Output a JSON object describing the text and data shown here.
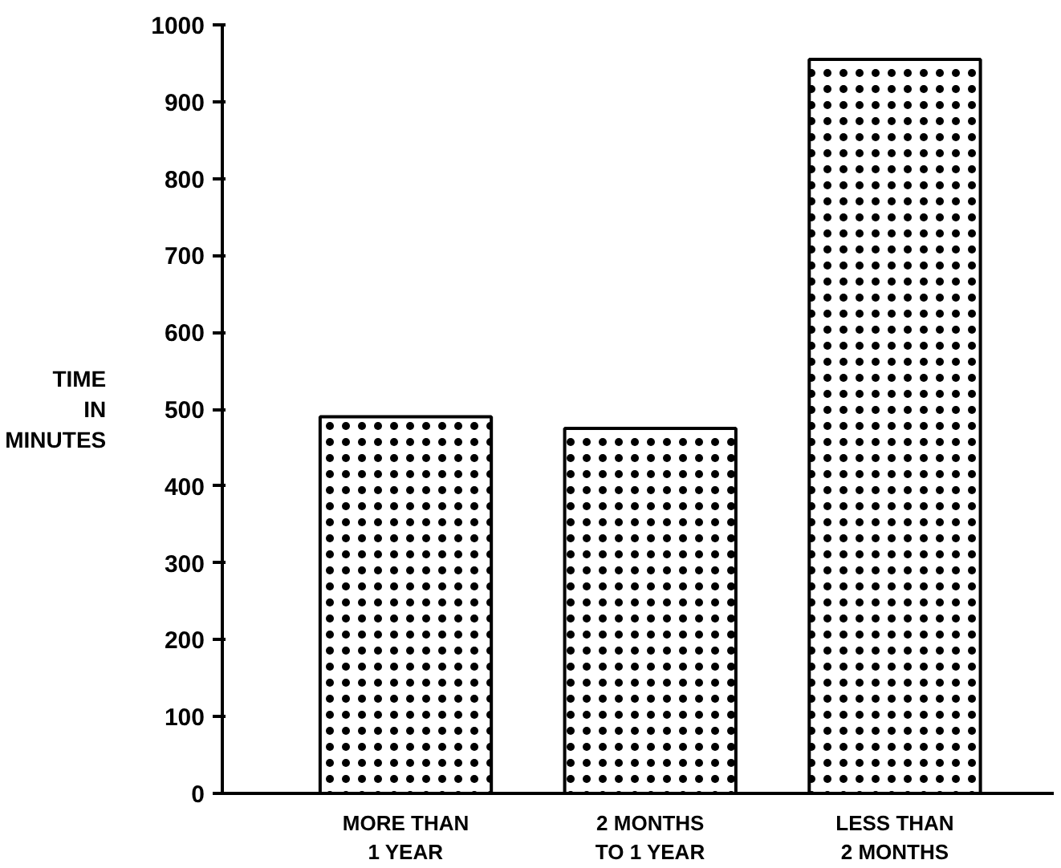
{
  "chart_data": {
    "type": "bar",
    "ylabel": "TIME\nIN\nMINUTES",
    "categories": [
      "MORE THAN\n1 YEAR",
      "2 MONTHS\nTO 1 YEAR",
      "LESS THAN\n2 MONTHS"
    ],
    "values": [
      490,
      475,
      955
    ],
    "color": "#ffffff",
    "ylim": [
      0,
      1000
    ],
    "yticks": [
      0,
      100,
      200,
      300,
      400,
      500,
      600,
      700,
      800,
      900,
      1000
    ],
    "grid": false
  }
}
